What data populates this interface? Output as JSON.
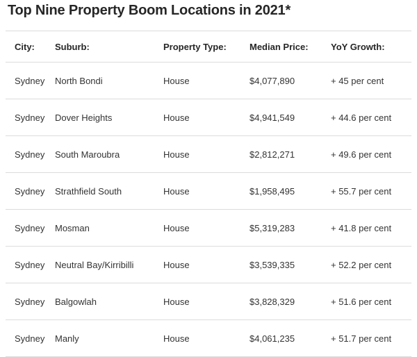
{
  "title": "Top Nine Property Boom Locations in 2021*",
  "table": {
    "headers": [
      "City:",
      "Suburb:",
      "Property Type:",
      "Median Price:",
      "YoY Growth:"
    ],
    "rows": [
      [
        "Sydney",
        "North Bondi",
        "House",
        "$4,077,890",
        "+ 45 per cent"
      ],
      [
        "Sydney",
        "Dover Heights",
        "House",
        "$4,941,549",
        "+ 44.6 per cent"
      ],
      [
        "Sydney",
        "South Maroubra",
        "House",
        "$2,812,271",
        "+ 49.6 per cent"
      ],
      [
        "Sydney",
        "Strathfield South",
        "House",
        "$1,958,495",
        "+ 55.7 per cent"
      ],
      [
        "Sydney",
        "Mosman",
        "House",
        "$5,319,283",
        "+ 41.8 per cent"
      ],
      [
        "Sydney",
        "Neutral Bay/Kirribilli",
        "House",
        "$3,539,335",
        "+ 52.2 per cent"
      ],
      [
        "Sydney",
        "Balgowlah",
        "House",
        "$3,828,329",
        "+ 51.6 per cent"
      ],
      [
        "Sydney",
        "Manly",
        "House",
        "$4,061,235",
        "+ 51.7 per cent"
      ]
    ]
  }
}
